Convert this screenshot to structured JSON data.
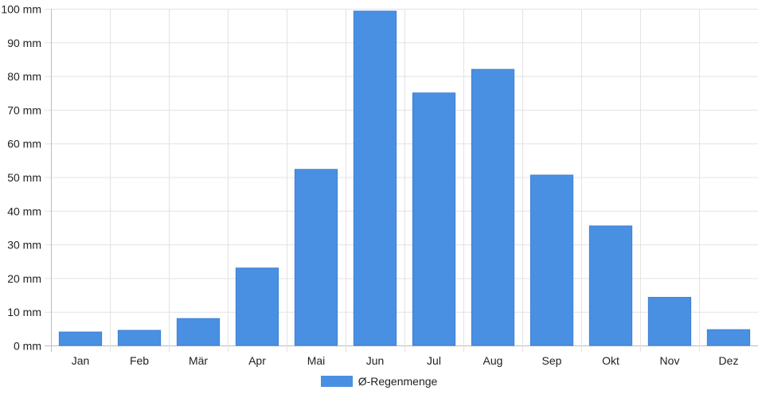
{
  "chart_data": {
    "type": "bar",
    "categories": [
      "Jan",
      "Feb",
      "Mär",
      "Apr",
      "Mai",
      "Jun",
      "Jul",
      "Aug",
      "Sep",
      "Okt",
      "Nov",
      "Dez"
    ],
    "series": [
      {
        "name": "Ø-Regenmenge",
        "values": [
          4,
          4.5,
          8,
          23,
          52.3,
          99.3,
          75,
          82,
          50.6,
          35.5,
          14.3,
          4.7
        ],
        "color": "#4a90e2"
      }
    ],
    "yticks": [
      "0 mm",
      "10 mm",
      "20 mm",
      "30 mm",
      "40 mm",
      "50 mm",
      "60 mm",
      "70 mm",
      "80 mm",
      "90 mm",
      "100 mm"
    ],
    "ylim": [
      0,
      100
    ],
    "grid": true,
    "legend_position": "bottom"
  }
}
